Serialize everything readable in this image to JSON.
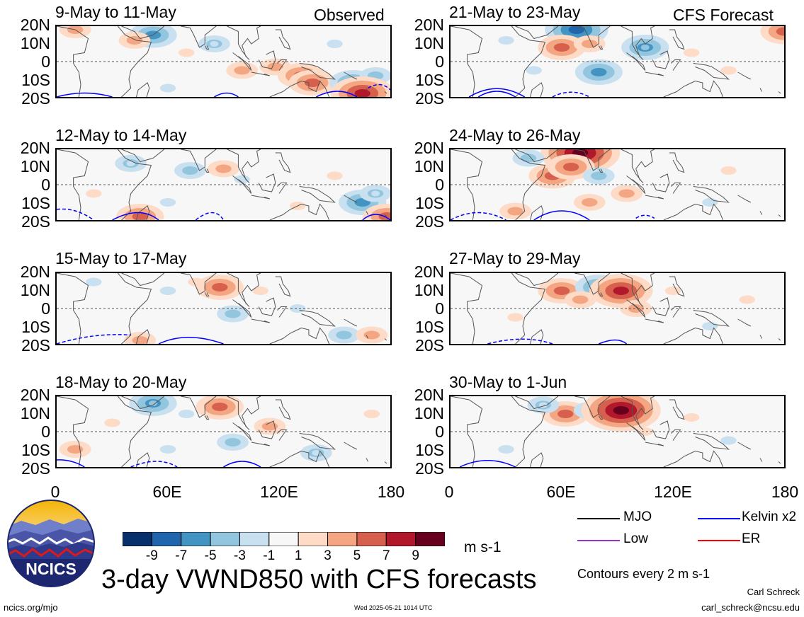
{
  "chart_data": {
    "type": "heatmap",
    "title": "3-day VWND850 with CFS forecasts",
    "units": "m s-1",
    "lon_ticks": [
      "0",
      "60E",
      "120E",
      "180"
    ],
    "lat_ticks": [
      "20N",
      "10N",
      "0",
      "10S",
      "20S"
    ],
    "lon_range": [
      0,
      180
    ],
    "lat_range": [
      -20,
      20
    ],
    "color_scale": {
      "levels": [
        -9,
        -7,
        -5,
        -3,
        -1,
        1,
        3,
        5,
        7,
        9
      ],
      "level_labels": [
        "-9",
        "-7",
        "-5",
        "-3",
        "-1",
        "1",
        "3",
        "5",
        "7",
        "9"
      ],
      "colors": [
        "#08306b",
        "#2166ac",
        "#4393c3",
        "#92c5de",
        "#c8e0ef",
        "#f7f7f7",
        "#fddbc7",
        "#f4a582",
        "#d6604d",
        "#b2182b",
        "#67001f"
      ]
    },
    "panels": [
      {
        "title": "9-May to 11-May",
        "tag": "Observed",
        "blobs": [
          {
            "lon": 52,
            "lat": 15,
            "v": -6
          },
          {
            "lon": 42,
            "lat": 12,
            "v": 3
          },
          {
            "lon": 85,
            "lat": 10,
            "v": -3
          },
          {
            "lon": 100,
            "lat": -5,
            "v": 3
          },
          {
            "lon": 118,
            "lat": -3,
            "v": 4
          },
          {
            "lon": 132,
            "lat": -8,
            "v": 5
          },
          {
            "lon": 138,
            "lat": -12,
            "v": 6
          },
          {
            "lon": 160,
            "lat": -12,
            "v": -5
          },
          {
            "lon": 172,
            "lat": -8,
            "v": -4
          },
          {
            "lon": 165,
            "lat": -18,
            "v": 7
          },
          {
            "lon": 10,
            "lat": 18,
            "v": 3
          },
          {
            "lon": 150,
            "lat": 10,
            "v": -2
          },
          {
            "lon": 70,
            "lat": 5,
            "v": 2
          },
          {
            "lon": 60,
            "lat": -15,
            "v": -2
          }
        ],
        "contours": [
          {
            "kind": "solid",
            "lon": [
              0,
              15,
              30
            ],
            "lat": [
              -20,
              -18,
              -20
            ]
          },
          {
            "kind": "solid",
            "lon": [
              85,
              92,
              98
            ],
            "lat": [
              -20,
              -18,
              -20
            ]
          },
          {
            "kind": "solid",
            "lon": [
              140,
              152,
              162
            ],
            "lat": [
              -20,
              -16,
              -20
            ]
          },
          {
            "kind": "dashed",
            "lon": [
              168,
              175,
              180
            ],
            "lat": [
              -15,
              -13,
              -16
            ]
          }
        ]
      },
      {
        "title": "12-May to 14-May",
        "tag": "",
        "blobs": [
          {
            "lon": 40,
            "lat": 12,
            "v": -3
          },
          {
            "lon": 72,
            "lat": 8,
            "v": -4
          },
          {
            "lon": 90,
            "lat": 9,
            "v": 4
          },
          {
            "lon": 100,
            "lat": 3,
            "v": -2
          },
          {
            "lon": 20,
            "lat": -5,
            "v": 2
          },
          {
            "lon": 165,
            "lat": -10,
            "v": -6
          },
          {
            "lon": 172,
            "lat": -5,
            "v": -3
          },
          {
            "lon": 178,
            "lat": -18,
            "v": 5
          },
          {
            "lon": 45,
            "lat": -18,
            "v": 5
          },
          {
            "lon": 130,
            "lat": -12,
            "v": 2
          },
          {
            "lon": 150,
            "lat": 5,
            "v": 2
          },
          {
            "lon": 60,
            "lat": -10,
            "v": -2
          }
        ],
        "contours": [
          {
            "kind": "dashed",
            "lon": [
              0,
              10,
              20
            ],
            "lat": [
              -14,
              -15,
              -20
            ]
          },
          {
            "kind": "solid",
            "lon": [
              30,
              45,
              55
            ],
            "lat": [
              -20,
              -14,
              -20
            ]
          },
          {
            "kind": "dashed",
            "lon": [
              75,
              85,
              90
            ],
            "lat": [
              -20,
              -14,
              -20
            ]
          },
          {
            "kind": "solid",
            "lon": [
              165,
              172,
              180
            ],
            "lat": [
              -20,
              -16,
              -20
            ]
          }
        ]
      },
      {
        "title": "15-May to 17-May",
        "tag": "",
        "blobs": [
          {
            "lon": 88,
            "lat": 12,
            "v": 6
          },
          {
            "lon": 95,
            "lat": -3,
            "v": -4
          },
          {
            "lon": 60,
            "lat": 10,
            "v": -2
          },
          {
            "lon": 130,
            "lat": 0,
            "v": -2
          },
          {
            "lon": 155,
            "lat": -15,
            "v": -4
          },
          {
            "lon": 170,
            "lat": -15,
            "v": 3
          },
          {
            "lon": 75,
            "lat": 15,
            "v": 2
          },
          {
            "lon": 20,
            "lat": 15,
            "v": -2
          },
          {
            "lon": 45,
            "lat": -18,
            "v": 3
          },
          {
            "lon": 110,
            "lat": 10,
            "v": 2
          }
        ],
        "contours": [
          {
            "kind": "dashed",
            "lon": [
              0,
              20,
              40
            ],
            "lat": [
              -20,
              -16,
              -15
            ]
          },
          {
            "kind": "solid",
            "lon": [
              55,
              70,
              90
            ],
            "lat": [
              -20,
              -15,
              -20
            ]
          }
        ]
      },
      {
        "title": "18-May to 20-May",
        "tag": "",
        "blobs": [
          {
            "lon": 52,
            "lat": 16,
            "v": -5
          },
          {
            "lon": 88,
            "lat": 14,
            "v": 6
          },
          {
            "lon": 70,
            "lat": 10,
            "v": -2
          },
          {
            "lon": 95,
            "lat": -6,
            "v": -4
          },
          {
            "lon": 115,
            "lat": 3,
            "v": 3
          },
          {
            "lon": 10,
            "lat": -10,
            "v": 4
          },
          {
            "lon": 140,
            "lat": -12,
            "v": -3
          },
          {
            "lon": 60,
            "lat": -10,
            "v": -2
          },
          {
            "lon": 30,
            "lat": 5,
            "v": 2
          },
          {
            "lon": 170,
            "lat": 10,
            "v": 2
          }
        ],
        "contours": [
          {
            "kind": "solid",
            "lon": [
              0,
              8,
              15
            ],
            "lat": [
              -16,
              -18,
              -20
            ]
          },
          {
            "kind": "dashed",
            "lon": [
              40,
              55,
              65
            ],
            "lat": [
              -20,
              -16,
              -20
            ]
          },
          {
            "kind": "solid",
            "lon": [
              90,
              100,
              110
            ],
            "lat": [
              -20,
              -16,
              -20
            ]
          }
        ]
      },
      {
        "title": "21-May to 23-May",
        "tag": "CFS Forecast",
        "blobs": [
          {
            "lon": 68,
            "lat": 18,
            "v": -8
          },
          {
            "lon": 60,
            "lat": 8,
            "v": 5
          },
          {
            "lon": 75,
            "lat": 10,
            "v": 4
          },
          {
            "lon": 80,
            "lat": -6,
            "v": -6
          },
          {
            "lon": 105,
            "lat": 8,
            "v": -5
          },
          {
            "lon": 180,
            "lat": 17,
            "v": 6
          },
          {
            "lon": 45,
            "lat": -5,
            "v": -2
          },
          {
            "lon": 130,
            "lat": 5,
            "v": 2
          },
          {
            "lon": 150,
            "lat": -5,
            "v": 2
          },
          {
            "lon": 30,
            "lat": 12,
            "v": -2
          }
        ],
        "contours": [
          {
            "kind": "solid",
            "lon": [
              10,
              25,
              40
            ],
            "lat": [
              -20,
              -13,
              -20
            ]
          },
          {
            "kind": "solid",
            "lon": [
              15,
              25,
              35
            ],
            "lat": [
              -20,
              -16,
              -20
            ]
          },
          {
            "kind": "dashed",
            "lon": [
              55,
              65,
              75
            ],
            "lat": [
              -20,
              -17,
              -20
            ]
          }
        ]
      },
      {
        "title": "24-May to 26-May",
        "tag": "",
        "blobs": [
          {
            "lon": 70,
            "lat": 18,
            "v": 9
          },
          {
            "lon": 55,
            "lat": 5,
            "v": 6
          },
          {
            "lon": 65,
            "lat": 10,
            "v": 5
          },
          {
            "lon": 80,
            "lat": 5,
            "v": -4
          },
          {
            "lon": 42,
            "lat": 15,
            "v": -4
          },
          {
            "lon": 95,
            "lat": -5,
            "v": 3
          },
          {
            "lon": 75,
            "lat": -10,
            "v": 3
          },
          {
            "lon": 35,
            "lat": -15,
            "v": 4
          },
          {
            "lon": 150,
            "lat": 8,
            "v": 2
          },
          {
            "lon": 140,
            "lat": -10,
            "v": -2
          }
        ],
        "contours": [
          {
            "kind": "dashed",
            "lon": [
              0,
              15,
              30
            ],
            "lat": [
              -20,
              -14,
              -20
            ]
          },
          {
            "kind": "solid",
            "lon": [
              45,
              60,
              75
            ],
            "lat": [
              -20,
              -12,
              -20
            ]
          },
          {
            "kind": "dashed",
            "lon": [
              100,
              105,
              110
            ],
            "lat": [
              -19,
              -18,
              -19
            ]
          }
        ]
      },
      {
        "title": "27-May to 29-May",
        "tag": "",
        "blobs": [
          {
            "lon": 60,
            "lat": 10,
            "v": 5
          },
          {
            "lon": 80,
            "lat": 12,
            "v": -5
          },
          {
            "lon": 92,
            "lat": 10,
            "v": 8
          },
          {
            "lon": 70,
            "lat": 5,
            "v": 3
          },
          {
            "lon": 100,
            "lat": 0,
            "v": 3
          },
          {
            "lon": 140,
            "lat": -10,
            "v": -2
          },
          {
            "lon": 35,
            "lat": -5,
            "v": 2
          },
          {
            "lon": 160,
            "lat": 5,
            "v": 2
          },
          {
            "lon": 120,
            "lat": 10,
            "v": 2
          }
        ],
        "contours": [
          {
            "kind": "dashed",
            "lon": [
              20,
              40,
              55
            ],
            "lat": [
              -20,
              -17,
              -20
            ]
          },
          {
            "kind": "solid",
            "lon": [
              80,
              90,
              95
            ],
            "lat": [
              -20,
              -18,
              -20
            ]
          }
        ]
      },
      {
        "title": "30-May to 1-Jun",
        "tag": "",
        "blobs": [
          {
            "lon": 62,
            "lat": 10,
            "v": 6
          },
          {
            "lon": 75,
            "lat": 12,
            "v": -3
          },
          {
            "lon": 92,
            "lat": 12,
            "v": 9
          },
          {
            "lon": 50,
            "lat": 15,
            "v": -3
          },
          {
            "lon": 105,
            "lat": 0,
            "v": 2
          },
          {
            "lon": 150,
            "lat": -5,
            "v": -2
          },
          {
            "lon": 130,
            "lat": 8,
            "v": 2
          },
          {
            "lon": 30,
            "lat": -10,
            "v": -2
          }
        ],
        "contours": [
          {
            "kind": "solid",
            "lon": [
              5,
              20,
              35
            ],
            "lat": [
              -20,
              -15,
              -20
            ]
          }
        ]
      }
    ]
  },
  "legend": {
    "items": [
      {
        "label": "MJO",
        "color": "#000000"
      },
      {
        "label": "Kelvin x2",
        "color": "#0000ff"
      },
      {
        "label": "Low",
        "color": "#9932cc"
      },
      {
        "label": "ER",
        "color": "#ff0000"
      }
    ],
    "contour_note": "Contours every 2 m s-1"
  },
  "logo": {
    "text": "NCICS"
  },
  "footer": {
    "left": "ncics.org/mjo",
    "timestamp": "Wed 2025-05-21 1014 UTC",
    "author": "Carl Schreck",
    "email": "carl_schreck@ncsu.edu"
  },
  "colors": {
    "contour_kelvin": "#0000ff",
    "coast": "#555555",
    "frame": "#000000"
  },
  "icons": {
    "logo": "ncics-mountain-logo"
  }
}
